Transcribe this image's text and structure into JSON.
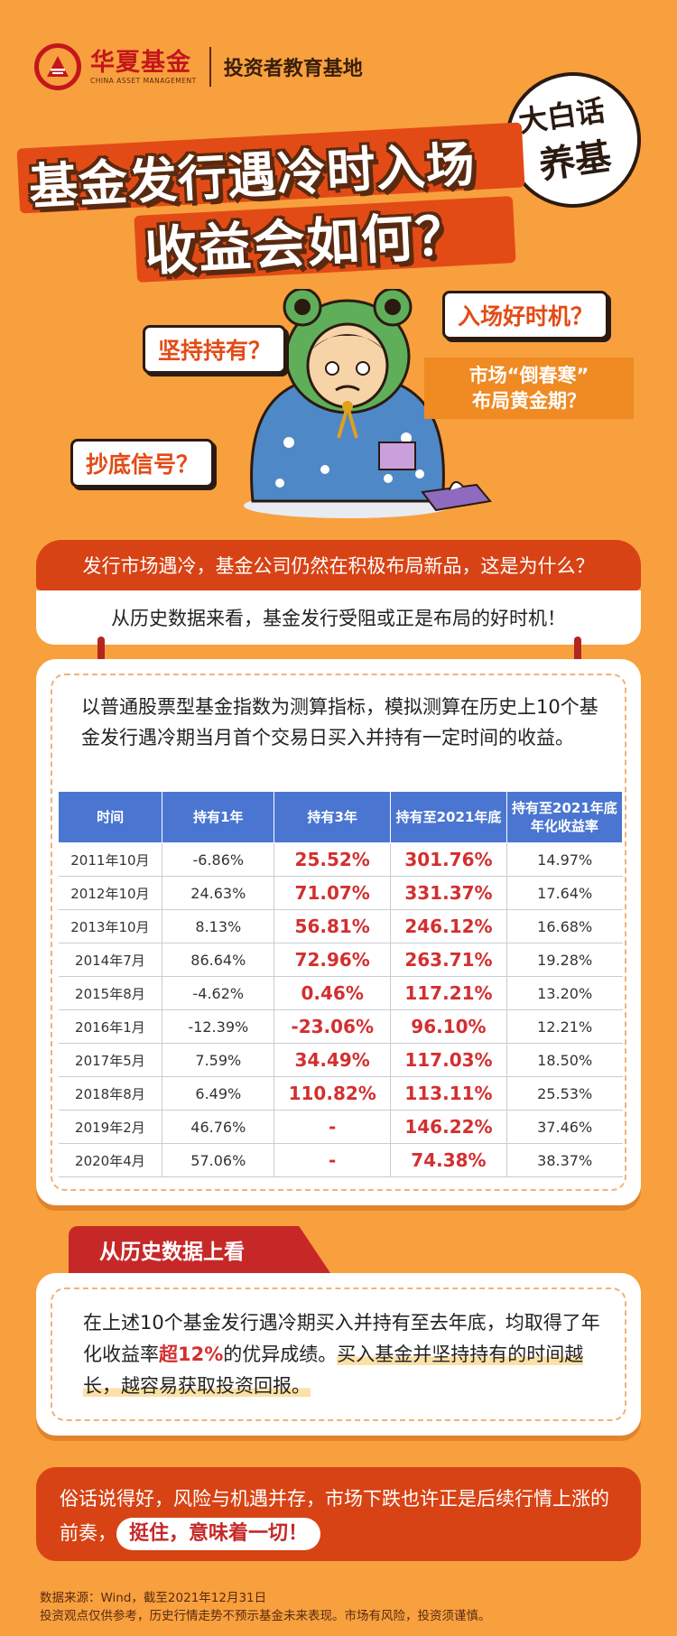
{
  "header": {
    "brand_cn": "华夏基金",
    "brand_en": "CHINA ASSET MANAGEMENT",
    "brand_sub": "投资者教育基地"
  },
  "badge": {
    "line1": "大白话",
    "line2": "养基"
  },
  "title": {
    "line1": "基金发行遇冷时入场",
    "line2": "收益会如何？"
  },
  "bubbles": {
    "b1": "入场好时机？",
    "b2": "坚持持有？",
    "b3_line1": "市场“倒春寒”",
    "b3_line2": "布局黄金期？",
    "b4": "抄底信号？"
  },
  "qa": {
    "question": "发行市场遇冷，基金公司仍然在积极布局新品，这是为什么？",
    "answer": "从历史数据来看，基金发行受阻或正是布局的好时机！"
  },
  "intro": "以普通股票型基金指数为测算指标，模拟测算在历史上10个基金发行遇冷期当月首个交易日买入并持有一定时间的收益。",
  "table": {
    "headers": [
      "时间",
      "持有1年",
      "持有3年",
      "持有至2021年底",
      "持有至2021年底年化收益率"
    ],
    "rows": [
      [
        "2011年10月",
        "-6.86%",
        "25.52%",
        "301.76%",
        "14.97%"
      ],
      [
        "2012年10月",
        "24.63%",
        "71.07%",
        "331.37%",
        "17.64%"
      ],
      [
        "2013年10月",
        "8.13%",
        "56.81%",
        "246.12%",
        "16.68%"
      ],
      [
        "2014年7月",
        "86.64%",
        "72.96%",
        "263.71%",
        "19.28%"
      ],
      [
        "2015年8月",
        "-4.62%",
        "0.46%",
        "117.21%",
        "13.20%"
      ],
      [
        "2016年1月",
        "-12.39%",
        "-23.06%",
        "96.10%",
        "12.21%"
      ],
      [
        "2017年5月",
        "7.59%",
        "34.49%",
        "117.03%",
        "18.50%"
      ],
      [
        "2018年8月",
        "6.49%",
        "110.82%",
        "113.11%",
        "25.53%"
      ],
      [
        "2019年2月",
        "46.76%",
        "-",
        "146.22%",
        "37.46%"
      ],
      [
        "2020年4月",
        "57.06%",
        "-",
        "74.38%",
        "38.37%"
      ]
    ]
  },
  "section2": {
    "tab": "从历史数据上看",
    "p1": "在上述10个基金发行遇冷期买入并持有至去年底，均取得了年化收益率",
    "hl": "超12%",
    "p2": "的优异成绩。",
    "p3": "买入基金并坚持持有的时间越长，越容易获取投资回报。"
  },
  "quote": {
    "text": "俗话说得好，风险与机遇并存，市场下跌也许正是后续行情上涨的前奏，",
    "pill": "挺住，意味着一切！"
  },
  "source": {
    "line1": "数据来源：Wind，截至2021年12月31日",
    "line2": "投资观点仅供参考，历史行情走势不预示基金未来表现。市场有风险，投资须谨慎。"
  },
  "colors": {
    "bg": "#f8a03e",
    "accent": "#d84315",
    "brand": "#c4161c",
    "table_head": "#4a76d1"
  }
}
